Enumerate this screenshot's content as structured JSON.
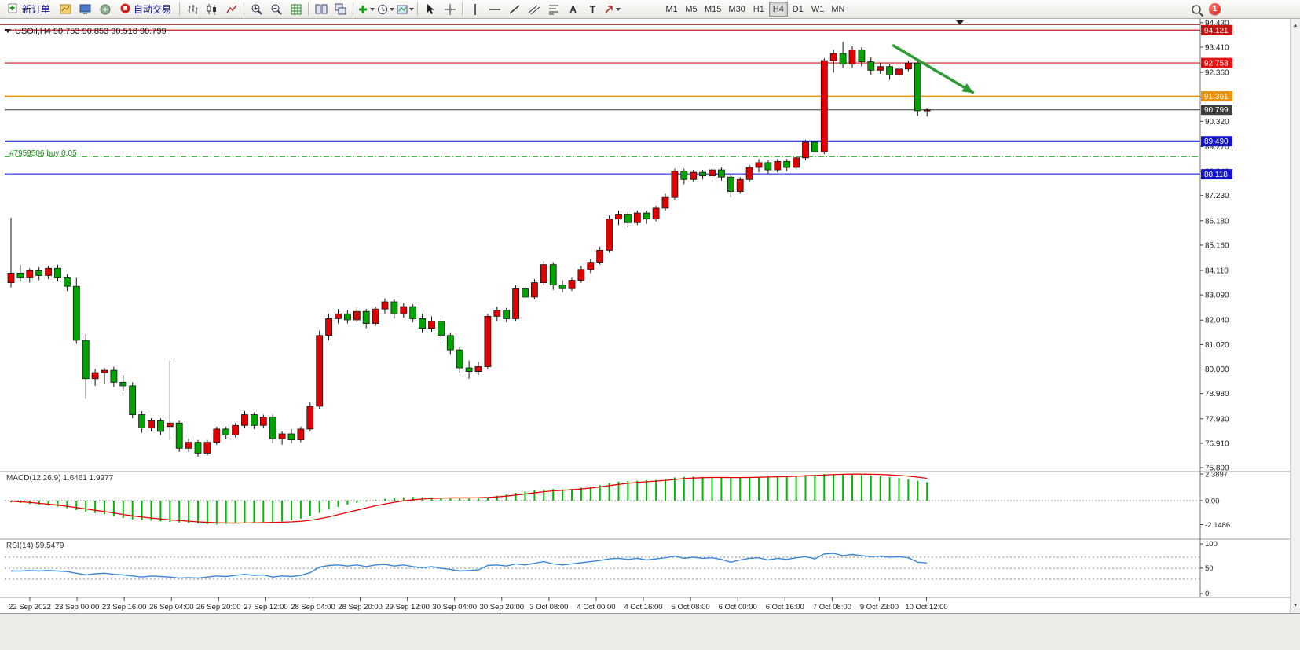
{
  "toolbar": {
    "new_order_label": "新订单",
    "auto_trading_label": "自动交易",
    "timeframes": [
      "M1",
      "M5",
      "M15",
      "M30",
      "H1",
      "H4",
      "D1",
      "W1",
      "MN"
    ],
    "active_timeframe": "H4",
    "notification_count": "1",
    "tool_text_glyph": "A",
    "tool_label_glyph": "T",
    "icon_names": [
      "new-order",
      "new-chart",
      "profiles",
      "terminal",
      "auto-trading",
      "bars-chart",
      "candlestick-chart",
      "line-chart",
      "zoom-in",
      "zoom-out",
      "grid",
      "tile-windows",
      "cascade-windows",
      "add-indicator",
      "periods",
      "templates",
      "cursor",
      "crosshair",
      "vertical-line",
      "horizontal-line",
      "trendline",
      "channel",
      "fibonacci",
      "text",
      "text-label",
      "shapes",
      "search"
    ]
  },
  "chart": {
    "title": "USOil,H4 90.753 90.853 90.518 90.799",
    "order_line": {
      "label": "#7959506 buy 0.05"
    },
    "price_axis_ticks": [
      "94.430",
      "93.410",
      "92.360",
      "91.330",
      "90.320",
      "89.270",
      "88.240",
      "87.230",
      "86.180",
      "85.160",
      "84.110",
      "83.090",
      "82.040",
      "81.020",
      "80.000",
      "78.980",
      "77.930",
      "76.910",
      "75.890"
    ],
    "time_axis_labels": [
      "22 Sep 2022",
      "23 Sep 00:00",
      "23 Sep 16:00",
      "26 Sep 04:00",
      "26 Sep 20:00",
      "27 Sep 12:00",
      "28 Sep 04:00",
      "28 Sep 20:00",
      "29 Sep 12:00",
      "30 Sep 04:00",
      "30 Sep 20:00",
      "3 Oct 08:00",
      "4 Oct 00:00",
      "4 Oct 16:00",
      "5 Oct 08:00",
      "6 Oct 00:00",
      "6 Oct 16:00",
      "7 Oct 08:00",
      "9 Oct 23:00",
      "10 Oct 12:00"
    ],
    "price_badges": [
      {
        "text": "94.121",
        "bg": "#c81414",
        "fg": "#ffffff"
      },
      {
        "text": "92.753",
        "bg": "#e01414",
        "fg": "#ffffff"
      },
      {
        "text": "91.361",
        "bg": "#e8920a",
        "fg": "#ffffff"
      },
      {
        "text": "90.799",
        "bg": "#3d3d3d",
        "fg": "#ffffff"
      },
      {
        "text": "89.490",
        "bg": "#1414c8",
        "fg": "#ffffff"
      },
      {
        "text": "88.118",
        "bg": "#1414c8",
        "fg": "#ffffff"
      }
    ]
  },
  "macd_panel": {
    "label": "MACD(12,26,9) 1.6461 1.9977",
    "ticks": [
      "2.3897",
      "0.00",
      "-2.1486"
    ]
  },
  "rsi_panel": {
    "label": "RSI(14) 59.5479",
    "ticks": [
      "100",
      "50",
      "0"
    ],
    "levels": [
      70,
      50,
      30
    ]
  },
  "chart_data": {
    "type": "candlestick",
    "symbol": "USOil",
    "period": "H4",
    "last_ohlc": {
      "open": "90.753",
      "high": "90.853",
      "low": "90.518",
      "close": "90.799"
    },
    "colors": {
      "up": "#e00000",
      "down": "#00a400",
      "outline": "#151515",
      "macd_hist": "#00bb00",
      "macd_signal": "#e80000",
      "rsi_line": "#3a87d8"
    },
    "levels": [
      {
        "price": 94.121,
        "color": "#c81414",
        "width": 1.2
      },
      {
        "price": 92.753,
        "color": "#e01414",
        "width": 1.2
      },
      {
        "price": 91.361,
        "color": "#e8920a",
        "width": 2
      },
      {
        "price": 90.799,
        "color": "#3d3d3d",
        "width": 1,
        "role": "current-price"
      },
      {
        "price": 89.49,
        "color": "#1414c8",
        "width": 2
      },
      {
        "price": 88.118,
        "color": "#1414c8",
        "width": 2
      }
    ],
    "order_line": {
      "price": 88.85,
      "color": "#0a9a0a",
      "label": "#7959506 buy 0.05"
    },
    "arrow": {
      "bar_from": 94.3,
      "price_from": 93.5,
      "bar_to": 103,
      "price_to": 91.5,
      "color": "#2f9b35"
    },
    "ohlc": [
      [
        83.6,
        86.3,
        83.4,
        84.0
      ],
      [
        84.0,
        84.35,
        83.65,
        83.8
      ],
      [
        83.8,
        84.2,
        83.6,
        84.1
      ],
      [
        84.1,
        84.25,
        83.7,
        83.9
      ],
      [
        83.9,
        84.3,
        83.75,
        84.2
      ],
      [
        84.2,
        84.35,
        83.65,
        83.8
      ],
      [
        83.8,
        83.95,
        83.25,
        83.45
      ],
      [
        83.45,
        83.8,
        81.05,
        81.2
      ],
      [
        81.2,
        81.45,
        78.75,
        79.6
      ],
      [
        79.6,
        80.0,
        79.3,
        79.85
      ],
      [
        79.85,
        80.05,
        79.4,
        79.95
      ],
      [
        79.95,
        80.1,
        79.25,
        79.45
      ],
      [
        79.45,
        79.75,
        79.1,
        79.3
      ],
      [
        79.3,
        79.45,
        77.95,
        78.1
      ],
      [
        78.1,
        78.25,
        77.35,
        77.55
      ],
      [
        77.55,
        77.95,
        77.4,
        77.85
      ],
      [
        77.85,
        77.95,
        77.25,
        77.4
      ],
      [
        77.6,
        80.35,
        77.05,
        77.75
      ],
      [
        77.75,
        77.85,
        76.55,
        76.7
      ],
      [
        76.7,
        77.1,
        76.55,
        76.95
      ],
      [
        76.95,
        77.05,
        76.35,
        76.5
      ],
      [
        76.5,
        77.05,
        76.4,
        76.95
      ],
      [
        76.95,
        77.6,
        76.85,
        77.5
      ],
      [
        77.5,
        77.6,
        77.1,
        77.25
      ],
      [
        77.25,
        77.75,
        77.15,
        77.65
      ],
      [
        77.65,
        78.25,
        77.55,
        78.1
      ],
      [
        78.1,
        78.2,
        77.5,
        77.65
      ],
      [
        77.65,
        78.1,
        77.55,
        78.0
      ],
      [
        78.0,
        78.1,
        76.9,
        77.1
      ],
      [
        77.1,
        77.4,
        76.85,
        77.3
      ],
      [
        77.3,
        77.5,
        76.9,
        77.05
      ],
      [
        77.05,
        77.6,
        76.95,
        77.5
      ],
      [
        77.5,
        78.6,
        77.4,
        78.45
      ],
      [
        78.45,
        81.6,
        78.35,
        81.4
      ],
      [
        81.4,
        82.3,
        81.2,
        82.1
      ],
      [
        82.1,
        82.5,
        81.9,
        82.3
      ],
      [
        82.3,
        82.45,
        81.9,
        82.05
      ],
      [
        82.05,
        82.55,
        81.95,
        82.4
      ],
      [
        82.4,
        82.5,
        81.7,
        81.9
      ],
      [
        81.9,
        82.6,
        81.8,
        82.5
      ],
      [
        82.5,
        82.95,
        82.3,
        82.8
      ],
      [
        82.8,
        82.9,
        82.1,
        82.3
      ],
      [
        82.3,
        82.75,
        82.15,
        82.6
      ],
      [
        82.6,
        82.7,
        81.95,
        82.1
      ],
      [
        82.1,
        82.3,
        81.5,
        81.7
      ],
      [
        81.7,
        82.2,
        81.55,
        82.0
      ],
      [
        82.0,
        82.1,
        81.2,
        81.4
      ],
      [
        81.4,
        81.5,
        80.6,
        80.8
      ],
      [
        80.8,
        80.9,
        79.85,
        80.05
      ],
      [
        80.05,
        80.35,
        79.6,
        79.9
      ],
      [
        79.9,
        80.3,
        79.75,
        80.1
      ],
      [
        80.1,
        82.3,
        80.0,
        82.2
      ],
      [
        82.2,
        82.6,
        82.0,
        82.45
      ],
      [
        82.45,
        82.55,
        81.95,
        82.1
      ],
      [
        82.1,
        83.5,
        82.0,
        83.35
      ],
      [
        83.35,
        83.45,
        82.8,
        83.0
      ],
      [
        83.0,
        83.75,
        82.9,
        83.6
      ],
      [
        83.6,
        84.5,
        83.5,
        84.35
      ],
      [
        84.35,
        84.45,
        83.3,
        83.5
      ],
      [
        83.5,
        83.7,
        83.2,
        83.35
      ],
      [
        83.35,
        83.8,
        83.25,
        83.7
      ],
      [
        83.7,
        84.3,
        83.6,
        84.15
      ],
      [
        84.15,
        84.6,
        84.0,
        84.45
      ],
      [
        84.45,
        85.1,
        84.35,
        84.95
      ],
      [
        84.95,
        86.4,
        84.85,
        86.25
      ],
      [
        86.25,
        86.6,
        86.0,
        86.45
      ],
      [
        86.45,
        86.55,
        85.9,
        86.1
      ],
      [
        86.1,
        86.6,
        86.0,
        86.5
      ],
      [
        86.5,
        86.6,
        86.05,
        86.25
      ],
      [
        86.25,
        86.8,
        86.15,
        86.7
      ],
      [
        86.7,
        87.3,
        86.6,
        87.15
      ],
      [
        87.15,
        88.35,
        87.05,
        88.25
      ],
      [
        88.25,
        88.35,
        87.7,
        87.9
      ],
      [
        87.9,
        88.3,
        87.8,
        88.2
      ],
      [
        88.2,
        88.3,
        87.9,
        88.05
      ],
      [
        88.05,
        88.45,
        87.95,
        88.3
      ],
      [
        88.3,
        88.4,
        87.85,
        88.0
      ],
      [
        88.0,
        88.1,
        87.15,
        87.4
      ],
      [
        87.4,
        88.0,
        87.3,
        87.9
      ],
      [
        87.9,
        88.5,
        87.8,
        88.4
      ],
      [
        88.4,
        88.75,
        88.2,
        88.6
      ],
      [
        88.6,
        88.7,
        88.1,
        88.3
      ],
      [
        88.3,
        88.75,
        88.2,
        88.65
      ],
      [
        88.65,
        88.75,
        88.25,
        88.4
      ],
      [
        88.4,
        88.9,
        88.3,
        88.8
      ],
      [
        88.8,
        89.55,
        88.7,
        89.45
      ],
      [
        89.45,
        89.5,
        88.9,
        89.05
      ],
      [
        89.05,
        92.95,
        88.95,
        92.85
      ],
      [
        92.85,
        93.3,
        92.35,
        93.15
      ],
      [
        93.15,
        93.63,
        92.55,
        92.7
      ],
      [
        92.7,
        93.45,
        92.55,
        93.3
      ],
      [
        93.3,
        93.4,
        92.6,
        92.8
      ],
      [
        92.8,
        93.0,
        92.25,
        92.45
      ],
      [
        92.45,
        92.75,
        92.3,
        92.6
      ],
      [
        92.6,
        92.7,
        92.05,
        92.25
      ],
      [
        92.25,
        92.6,
        92.15,
        92.5
      ],
      [
        92.5,
        92.85,
        92.4,
        92.75
      ],
      [
        92.75,
        92.85,
        90.55,
        90.76
      ],
      [
        90.753,
        90.853,
        90.518,
        90.799
      ]
    ],
    "macd_histogram": [
      -0.15,
      -0.2,
      -0.28,
      -0.36,
      -0.44,
      -0.54,
      -0.68,
      -0.84,
      -1.0,
      -1.1,
      -1.22,
      -1.38,
      -1.55,
      -1.68,
      -1.75,
      -1.8,
      -1.85,
      -1.9,
      -1.96,
      -2.0,
      -2.05,
      -2.1,
      -2.14,
      -2.1,
      -2.05,
      -2.0,
      -1.96,
      -1.92,
      -1.9,
      -1.86,
      -1.76,
      -1.6,
      -1.4,
      -1.1,
      -0.8,
      -0.56,
      -0.36,
      -0.2,
      -0.08,
      0.06,
      0.16,
      0.24,
      0.3,
      0.34,
      0.32,
      0.3,
      0.28,
      0.24,
      0.2,
      0.18,
      0.2,
      0.32,
      0.44,
      0.56,
      0.7,
      0.82,
      0.92,
      1.0,
      1.04,
      1.02,
      1.06,
      1.16,
      1.26,
      1.4,
      1.58,
      1.7,
      1.76,
      1.8,
      1.82,
      1.86,
      1.96,
      2.08,
      2.14,
      2.16,
      2.12,
      2.1,
      2.06,
      2.02,
      2.06,
      2.1,
      2.14,
      2.16,
      2.18,
      2.2,
      2.24,
      2.3,
      2.32,
      2.39,
      2.38,
      2.36,
      2.32,
      2.3,
      2.26,
      2.2,
      2.12,
      2.02,
      1.92,
      1.78,
      1.65
    ],
    "macd_signal": [
      -0.05,
      -0.1,
      -0.16,
      -0.24,
      -0.32,
      -0.4,
      -0.5,
      -0.62,
      -0.74,
      -0.86,
      -0.98,
      -1.1,
      -1.24,
      -1.36,
      -1.46,
      -1.56,
      -1.64,
      -1.72,
      -1.78,
      -1.84,
      -1.9,
      -1.94,
      -1.98,
      -2.0,
      -2.01,
      -2.0,
      -1.99,
      -1.97,
      -1.95,
      -1.93,
      -1.9,
      -1.85,
      -1.76,
      -1.62,
      -1.45,
      -1.25,
      -1.05,
      -0.85,
      -0.65,
      -0.46,
      -0.3,
      -0.15,
      -0.02,
      0.08,
      0.15,
      0.2,
      0.23,
      0.25,
      0.25,
      0.25,
      0.26,
      0.29,
      0.34,
      0.41,
      0.5,
      0.6,
      0.7,
      0.8,
      0.88,
      0.93,
      0.98,
      1.05,
      1.13,
      1.23,
      1.35,
      1.46,
      1.56,
      1.64,
      1.7,
      1.75,
      1.82,
      1.9,
      1.98,
      2.03,
      2.06,
      2.08,
      2.08,
      2.07,
      2.07,
      2.08,
      2.1,
      2.12,
      2.14,
      2.16,
      2.19,
      2.23,
      2.26,
      2.3,
      2.34,
      2.37,
      2.38,
      2.38,
      2.37,
      2.35,
      2.31,
      2.26,
      2.2,
      2.11,
      2.0
    ],
    "rsi_values": [
      45,
      45,
      46,
      45,
      46,
      45,
      44,
      41,
      38,
      40,
      41,
      39,
      38,
      36,
      34,
      36,
      35,
      34,
      32,
      33,
      32,
      34,
      36,
      35,
      37,
      39,
      37,
      38,
      34,
      36,
      35,
      37,
      42,
      52,
      55,
      56,
      54,
      56,
      53,
      56,
      57,
      54,
      56,
      53,
      51,
      53,
      50,
      48,
      45,
      46,
      47,
      55,
      56,
      54,
      58,
      56,
      59,
      62,
      58,
      56,
      58,
      60,
      62,
      64,
      67,
      68,
      66,
      68,
      65,
      67,
      69,
      72,
      68,
      70,
      68,
      69,
      66,
      61,
      65,
      68,
      69,
      65,
      68,
      66,
      69,
      71,
      67,
      76,
      77,
      73,
      75,
      73,
      71,
      72,
      70,
      71,
      69,
      61,
      59.5
    ]
  }
}
